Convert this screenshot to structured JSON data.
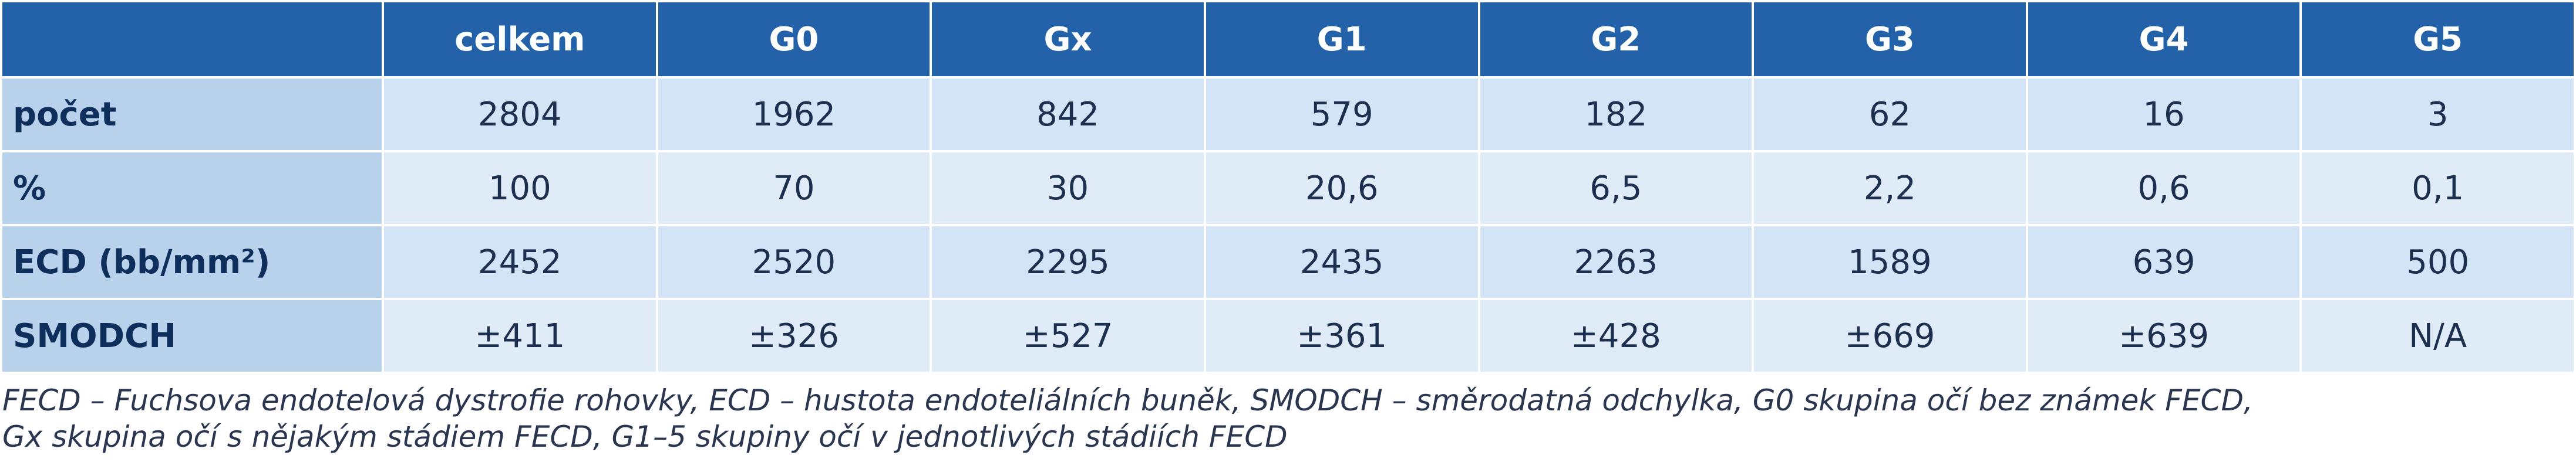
{
  "table": {
    "columns": [
      "celkem",
      "G0",
      "Gx",
      "G1",
      "G2",
      "G3",
      "G4",
      "G5"
    ],
    "rows": [
      {
        "label": "počet",
        "cells": [
          "2804",
          "1962",
          "842",
          "579",
          "182",
          "62",
          "16",
          "3"
        ]
      },
      {
        "label": "%",
        "cells": [
          "100",
          "70",
          "30",
          "20,6",
          "6,5",
          "2,2",
          "0,6",
          "0,1"
        ]
      },
      {
        "label": "ECD (bb/mm²)",
        "cells": [
          "2452",
          "2520",
          "2295",
          "2435",
          "2263",
          "1589",
          "639",
          "500"
        ]
      },
      {
        "label": "SMODCH",
        "cells": [
          "±411",
          "±326",
          "±527",
          "±361",
          "±428",
          "±669",
          "±639",
          "N/A"
        ]
      }
    ]
  },
  "footnote": [
    "FECD – Fuchsova endotelová dystrofie rohovky, ECD – hustota endoteliálních buněk, SMODCH – směrodatná odchylka, G0 skupina očí bez známek FECD,",
    "Gx skupina očí s nějakým stádiem FECD, G1–5 skupiny očí v jednotlivých stádiích FECD"
  ]
}
